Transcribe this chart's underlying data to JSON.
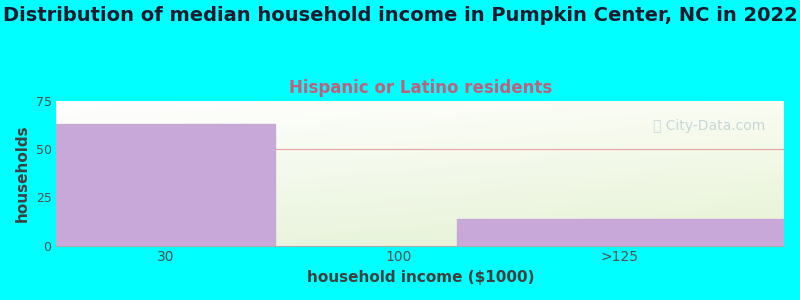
{
  "title": "Distribution of median household income in Pumpkin Center, NC in 2022",
  "subtitle": "Hispanic or Latino residents",
  "xlabel": "household income ($1000)",
  "ylabel": "households",
  "background_color": "#00FFFF",
  "bar_color": "#c8a8d8",
  "categories": [
    "30",
    "100",
    ">125"
  ],
  "values": [
    63,
    0,
    14
  ],
  "ylim": [
    0,
    75
  ],
  "yticks": [
    0,
    25,
    50,
    75
  ],
  "title_fontsize": 14,
  "title_color": "#1a1a2e",
  "subtitle_fontsize": 12,
  "subtitle_color": "#c06080",
  "ylabel_color": "#404040",
  "xlabel_color": "#404040",
  "tick_color": "#505050",
  "grid_color": "#e8a0a0",
  "watermark_text": "ⓘ City-Data.com",
  "watermark_color": "#a8c0c8",
  "watermark_alpha": 0.6,
  "watermark_fontsize": 10
}
